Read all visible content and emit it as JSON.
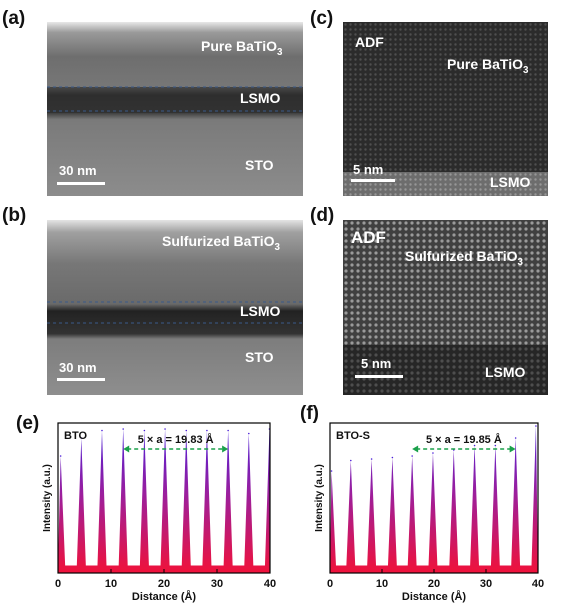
{
  "panels": {
    "a": {
      "label": "(a)",
      "film": "Pure BaTiO",
      "film_sub": "3",
      "layer": "LSMO",
      "substrate": "STO",
      "scale": "30 nm"
    },
    "b": {
      "label": "(b)",
      "film": "Sulfurized BaTiO",
      "film_sub": "3",
      "layer": "LSMO",
      "substrate": "STO",
      "scale": "30 nm"
    },
    "c": {
      "label": "(c)",
      "mode": "ADF",
      "film": "Pure BaTiO",
      "film_sub": "3",
      "layer": "LSMO",
      "scale": "5 nm"
    },
    "d": {
      "label": "(d)",
      "mode": "ADF",
      "film": "Sulfurized BaTiO",
      "film_sub": "3",
      "layer": "LSMO",
      "scale": "5 nm"
    }
  },
  "chart_data": [
    {
      "id": "e",
      "panel_label": "(e)",
      "type": "area",
      "inset_label": "BTO",
      "annotation": "5 × a = 19.83 Å",
      "annotation_span": [
        12.3,
        32.1
      ],
      "xlabel": "Distance (Å)",
      "ylabel": "Intensity (a.u.)",
      "xlim": [
        0,
        40
      ],
      "xticks": [
        0,
        10,
        20,
        30,
        40
      ],
      "peaks_x": [
        0.5,
        4.4,
        8.3,
        12.3,
        16.3,
        20.2,
        24.2,
        28.1,
        32.1,
        36.0,
        39.9
      ],
      "peaks_y": [
        0.78,
        0.9,
        0.95,
        0.96,
        0.95,
        0.96,
        0.95,
        0.95,
        0.95,
        0.93,
        0.96
      ],
      "baseline": 0.05
    },
    {
      "id": "f",
      "panel_label": "(f)",
      "type": "area",
      "inset_label": "BTO-S",
      "annotation": "5 × a = 19.85 Å",
      "annotation_span": [
        15.8,
        35.7
      ],
      "xlabel": "Distance (Å)",
      "ylabel": "Intensity (a.u.)",
      "xlim": [
        0,
        40
      ],
      "xticks": [
        0,
        10,
        20,
        30,
        40
      ],
      "peaks_x": [
        0.3,
        4.0,
        8.0,
        12.0,
        15.8,
        19.8,
        23.8,
        27.8,
        31.8,
        35.7,
        39.6
      ],
      "peaks_y": [
        0.68,
        0.75,
        0.76,
        0.77,
        0.78,
        0.8,
        0.82,
        0.85,
        0.85,
        0.9,
        0.98
      ],
      "baseline": 0.05
    }
  ]
}
